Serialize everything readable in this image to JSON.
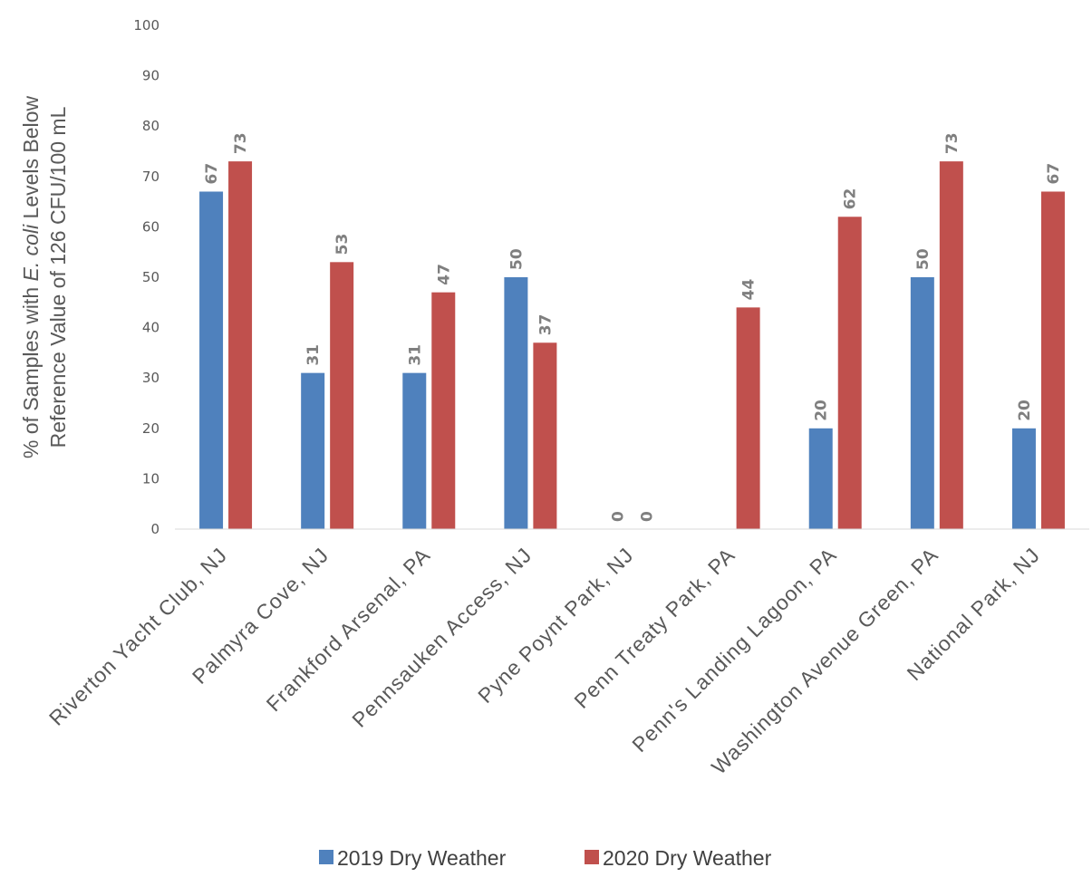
{
  "chart_data": {
    "type": "bar",
    "categories": [
      "Riverton Yacht Club, NJ",
      "Palmyra Cove, NJ",
      "Frankford Arsenal, PA",
      "Pennsauken Access, NJ",
      "Pyne Poynt Park, NJ",
      "Penn Treaty Park, PA",
      "Penn's Landing Lagoon, PA",
      "Washington Avenue Green, PA",
      "National Park, NJ"
    ],
    "series": [
      {
        "name": "2019 Dry Weather",
        "color": "#4f81bd",
        "values": [
          67,
          31,
          31,
          50,
          0,
          null,
          20,
          50,
          20
        ],
        "labels": [
          "67",
          "31",
          "31",
          "50",
          "0",
          "",
          "20",
          "50",
          "20"
        ]
      },
      {
        "name": "2020 Dry Weather",
        "color": "#c0504d",
        "values": [
          73,
          53,
          47,
          37,
          0,
          44,
          62,
          73,
          67
        ],
        "labels": [
          "73",
          "53",
          "47",
          "37",
          "0",
          "44",
          "62",
          "73",
          "67"
        ]
      }
    ],
    "ylabel_line1_parts": [
      "% of Samples with ",
      "E. coli",
      " Levels Below"
    ],
    "ylabel_line2": "Reference Value of 126 CFU/100 mL",
    "xlabel": "",
    "ylim": [
      0,
      100
    ],
    "yticks": [
      0,
      10,
      20,
      30,
      40,
      50,
      60,
      70,
      80,
      90,
      100
    ],
    "grid": false,
    "legend_position": "bottom"
  }
}
